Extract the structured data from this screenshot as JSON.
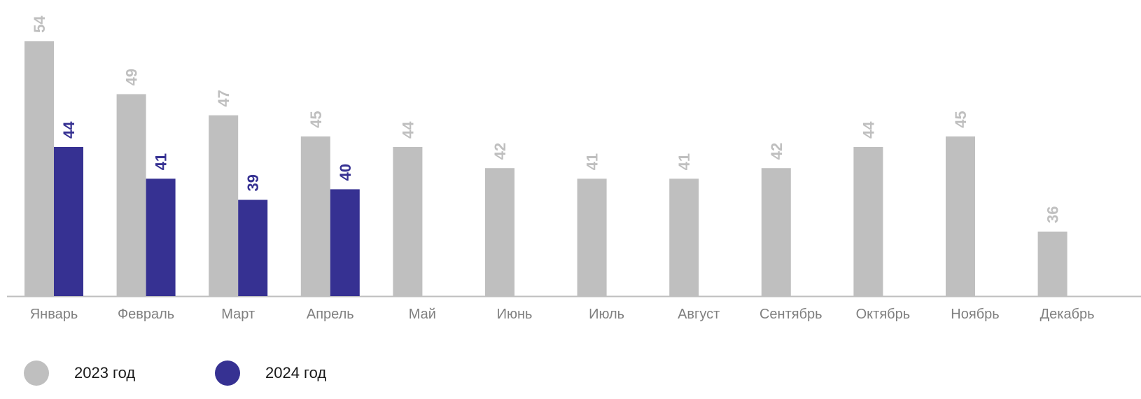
{
  "chart_data": {
    "type": "bar",
    "categories": [
      "Январь",
      "Февраль",
      "Март",
      "Апрель",
      "Май",
      "Июнь",
      "Июль",
      "Август",
      "Сентябрь",
      "Октябрь",
      "Ноябрь",
      "Декабрь"
    ],
    "series": [
      {
        "name": "2023 год",
        "color": "#bfbfbf",
        "values": [
          54,
          49,
          47,
          45,
          44,
          42,
          41,
          41,
          42,
          44,
          45,
          36
        ]
      },
      {
        "name": "2024 год",
        "color": "#363192",
        "values": [
          44,
          41,
          39,
          40,
          null,
          null,
          null,
          null,
          null,
          null,
          null,
          null
        ]
      }
    ],
    "ylim": [
      30,
      54
    ],
    "grid": false,
    "legend_position": "bottom-left",
    "data_labels": true,
    "axis_color": "#bfbfbf",
    "tick_label_color": "#808080"
  }
}
